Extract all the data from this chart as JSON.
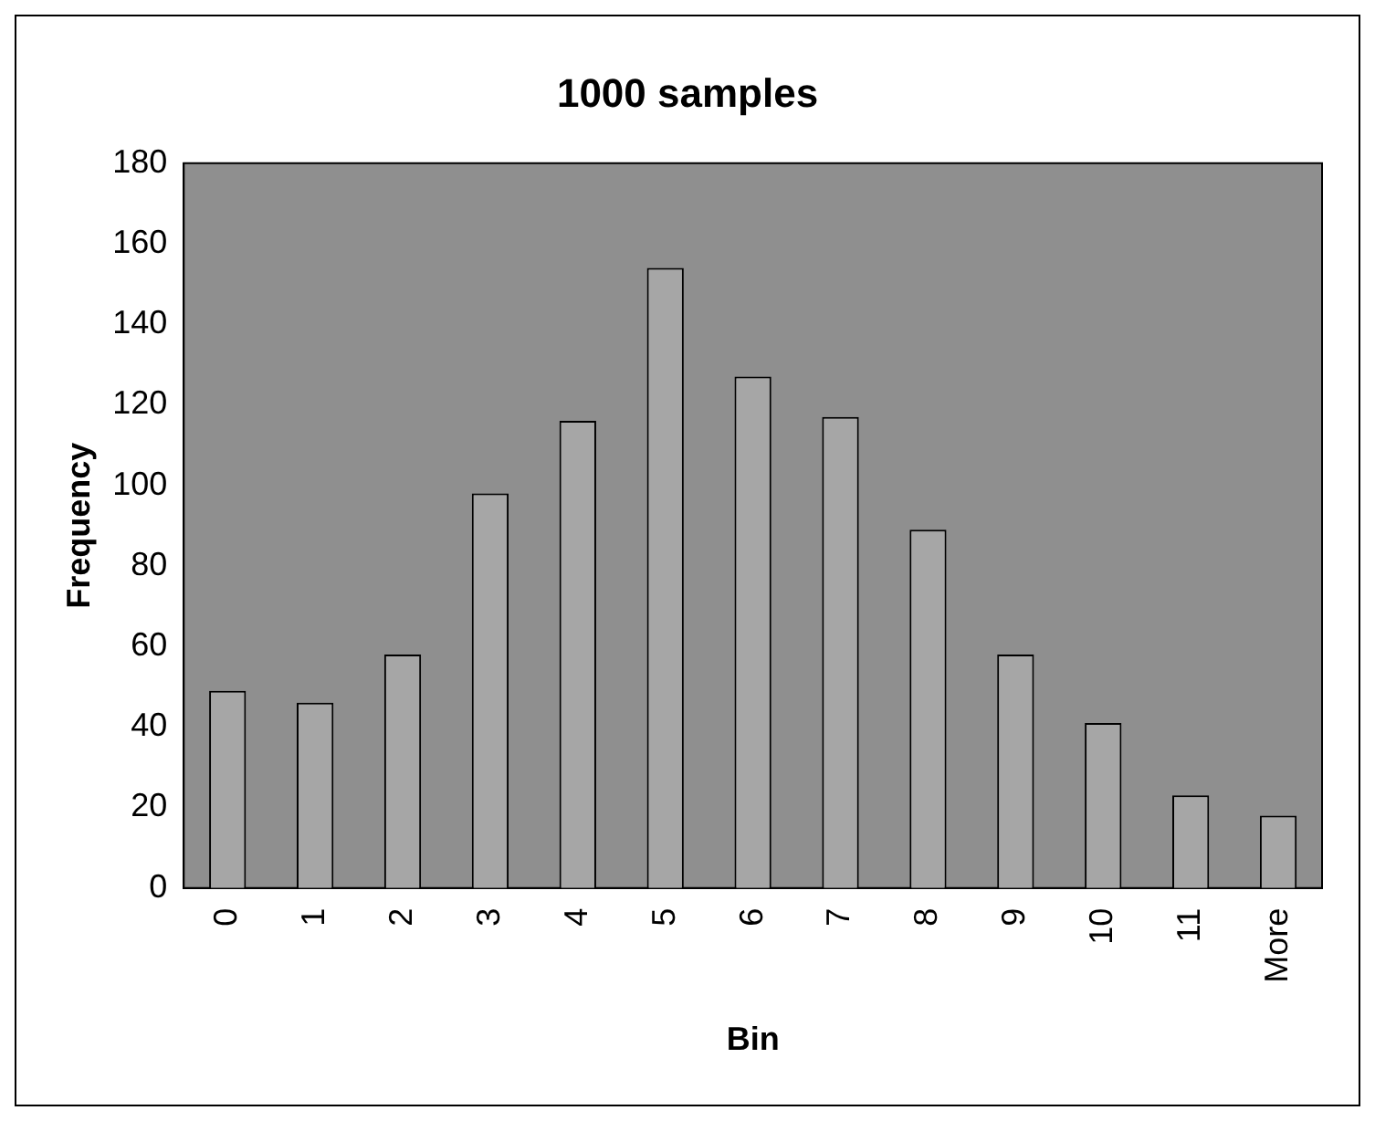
{
  "chart_data": {
    "type": "bar",
    "title": "1000 samples",
    "xlabel": "Bin",
    "ylabel": "Frequency",
    "categories": [
      "0",
      "1",
      "2",
      "3",
      "4",
      "5",
      "6",
      "7",
      "8",
      "9",
      "10",
      "11",
      "More"
    ],
    "values": [
      49,
      46,
      58,
      98,
      116,
      154,
      127,
      117,
      89,
      58,
      41,
      23,
      18
    ],
    "color": "#a6a6a6",
    "ylim": [
      0,
      180
    ],
    "yticks": [
      0,
      20,
      40,
      60,
      80,
      100,
      120,
      140,
      160,
      180
    ],
    "grid": false,
    "legend": false
  }
}
